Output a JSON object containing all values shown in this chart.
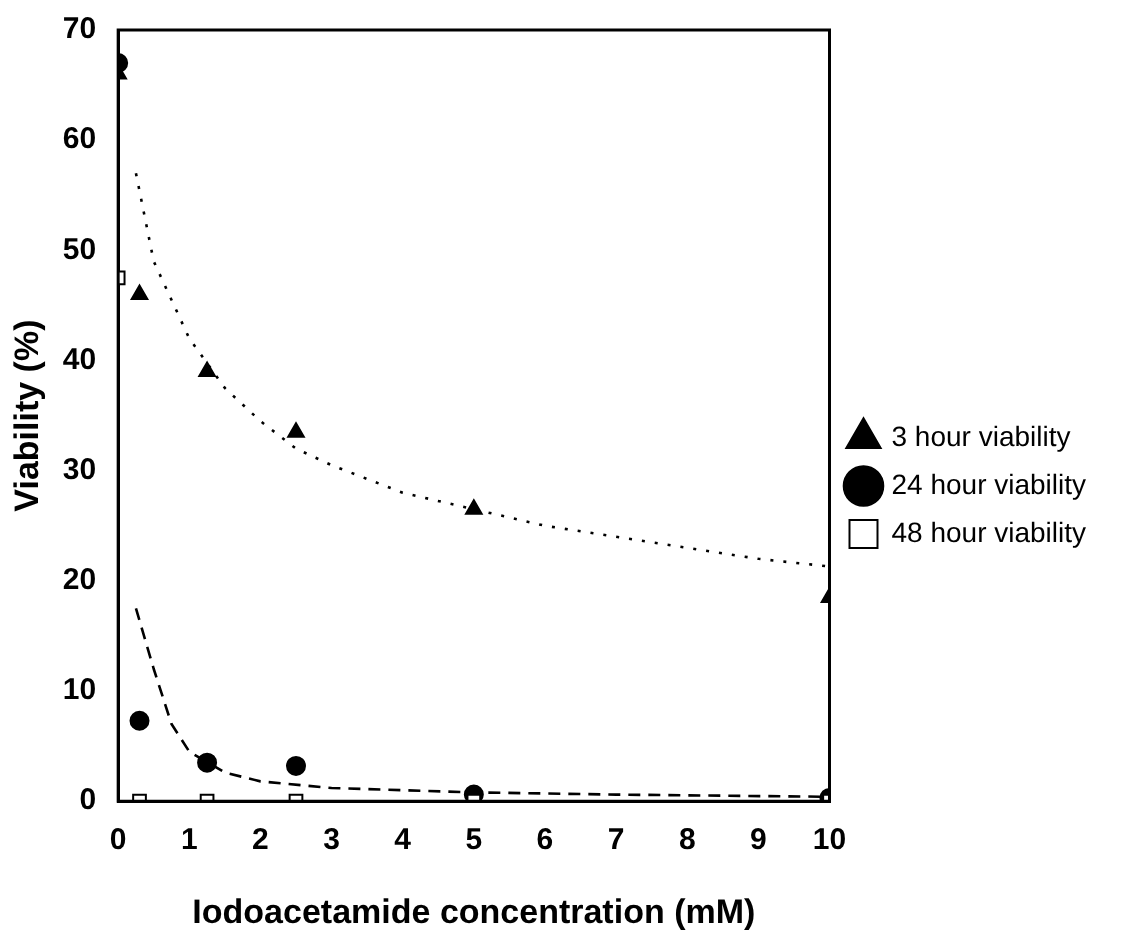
{
  "chart_data": {
    "type": "scatter",
    "xlabel": "Iodoacetamide concentration (mM)",
    "ylabel": "Viability (%)",
    "x": [
      0,
      0.3,
      1.25,
      2.5,
      5,
      10
    ],
    "series": [
      {
        "name": "3 hour viability",
        "color": "#000000",
        "marker": "triangle",
        "values": [
          66,
          46,
          39,
          33.5,
          26.5,
          18.5
        ]
      },
      {
        "name": "24 hour viability",
        "color": "#000000",
        "marker": "circle",
        "values": [
          67,
          7.3,
          3.5,
          3.2,
          0.6,
          0.3
        ]
      },
      {
        "name": "48 hour viability",
        "color": "#000000",
        "marker": "square",
        "values": [
          47.5,
          0,
          0,
          0,
          0,
          0
        ]
      },
      {
        "type": "line",
        "color": "#000000",
        "line_style": "dotted",
        "x": [
          0.25,
          0.5,
          1,
          1.5,
          2,
          2.5,
          3,
          4,
          5,
          6,
          7,
          8,
          9,
          10
        ],
        "values": [
          57,
          49,
          42,
          37.5,
          34.5,
          32,
          30.5,
          28,
          26.5,
          25,
          24,
          23,
          22,
          21.3
        ]
      },
      {
        "type": "line",
        "color": "#000000",
        "line_style": "dashed",
        "x": [
          0.25,
          0.5,
          0.75,
          1,
          1.5,
          2,
          3,
          5,
          7,
          10
        ],
        "values": [
          17.5,
          12,
          7,
          4.5,
          2.6,
          1.8,
          1.2,
          0.8,
          0.6,
          0.4
        ]
      }
    ],
    "xlim": [
      0,
      10
    ],
    "xticks": [
      0,
      1,
      2,
      3,
      4,
      5,
      6,
      7,
      8,
      9,
      10
    ],
    "ylim": [
      0,
      70
    ],
    "yticks": [
      0,
      10,
      20,
      30,
      40,
      50,
      60,
      70
    ],
    "grid": false,
    "legend": "right"
  }
}
